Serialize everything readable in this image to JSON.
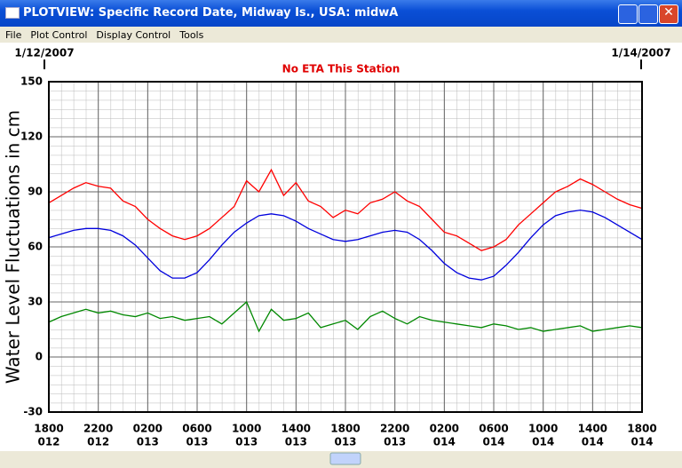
{
  "window": {
    "title": "PLOTVIEW: Specific Record Date, Midway Is., USA: midwA"
  },
  "menu": [
    "File",
    "Plot Control",
    "Display Control",
    "Tools"
  ],
  "chart_data": {
    "type": "line",
    "title": "No ETA This Station",
    "start_date": "1/12/2007",
    "end_date": "1/14/2007",
    "y_label": "Water Level Fluctuations in cm",
    "x": [
      0,
      1,
      2,
      3,
      4,
      5,
      6,
      7,
      8,
      9,
      10,
      11,
      12,
      13,
      14,
      15,
      16,
      17,
      18,
      19,
      20,
      21,
      22,
      23,
      24,
      25,
      26,
      27,
      28,
      29,
      30,
      31,
      32,
      33,
      34,
      35,
      36,
      37,
      38,
      39,
      40,
      41,
      42,
      43,
      44,
      45,
      46,
      47,
      48
    ],
    "xlim": [
      0,
      48
    ],
    "xticks": [
      {
        "value": 0,
        "label": "1800"
      },
      {
        "value": 4,
        "label": "2200"
      },
      {
        "value": 8,
        "label": "0200"
      },
      {
        "value": 12,
        "label": "0600"
      },
      {
        "value": 16,
        "label": "1000"
      },
      {
        "value": 20,
        "label": "1400"
      },
      {
        "value": 24,
        "label": "1800"
      },
      {
        "value": 28,
        "label": "2200"
      },
      {
        "value": 32,
        "label": "0200"
      },
      {
        "value": 36,
        "label": "0600"
      },
      {
        "value": 40,
        "label": "1000"
      },
      {
        "value": 44,
        "label": "1400"
      },
      {
        "value": 48,
        "label": "1800"
      }
    ],
    "xtick_days": [
      "012",
      "012",
      "013",
      "013",
      "013",
      "013",
      "013",
      "013",
      "014",
      "014",
      "014",
      "014",
      "014"
    ],
    "ylim": [
      -30,
      150
    ],
    "yticks": [
      -30,
      0,
      30,
      60,
      90,
      120,
      150
    ],
    "grid": true,
    "series": [
      {
        "color": "#ff0000",
        "values": [
          84,
          88,
          92,
          95,
          93,
          92,
          85,
          82,
          75,
          70,
          66,
          64,
          66,
          70,
          76,
          82,
          96,
          90,
          102,
          88,
          95,
          85,
          82,
          76,
          80,
          78,
          84,
          86,
          90,
          85,
          82,
          75,
          68,
          66,
          62,
          58,
          60,
          64,
          72,
          78,
          84,
          90,
          93,
          97,
          94,
          90,
          86,
          83,
          81
        ]
      },
      {
        "color": "#0000dd",
        "values": [
          65,
          67,
          69,
          70,
          70,
          69,
          66,
          61,
          54,
          47,
          43,
          43,
          46,
          53,
          61,
          68,
          73,
          77,
          78,
          77,
          74,
          70,
          67,
          64,
          63,
          64,
          66,
          68,
          69,
          68,
          64,
          58,
          51,
          46,
          43,
          42,
          44,
          50,
          57,
          65,
          72,
          77,
          79,
          80,
          79,
          76,
          72,
          68,
          64
        ]
      },
      {
        "color": "#008800",
        "values": [
          19,
          22,
          24,
          26,
          24,
          25,
          23,
          22,
          24,
          21,
          22,
          20,
          21,
          22,
          18,
          24,
          30,
          14,
          26,
          20,
          21,
          24,
          16,
          18,
          20,
          15,
          22,
          25,
          21,
          18,
          22,
          20,
          19,
          18,
          17,
          16,
          18,
          17,
          15,
          16,
          14,
          15,
          16,
          17,
          14,
          15,
          16,
          17,
          16
        ]
      }
    ]
  }
}
